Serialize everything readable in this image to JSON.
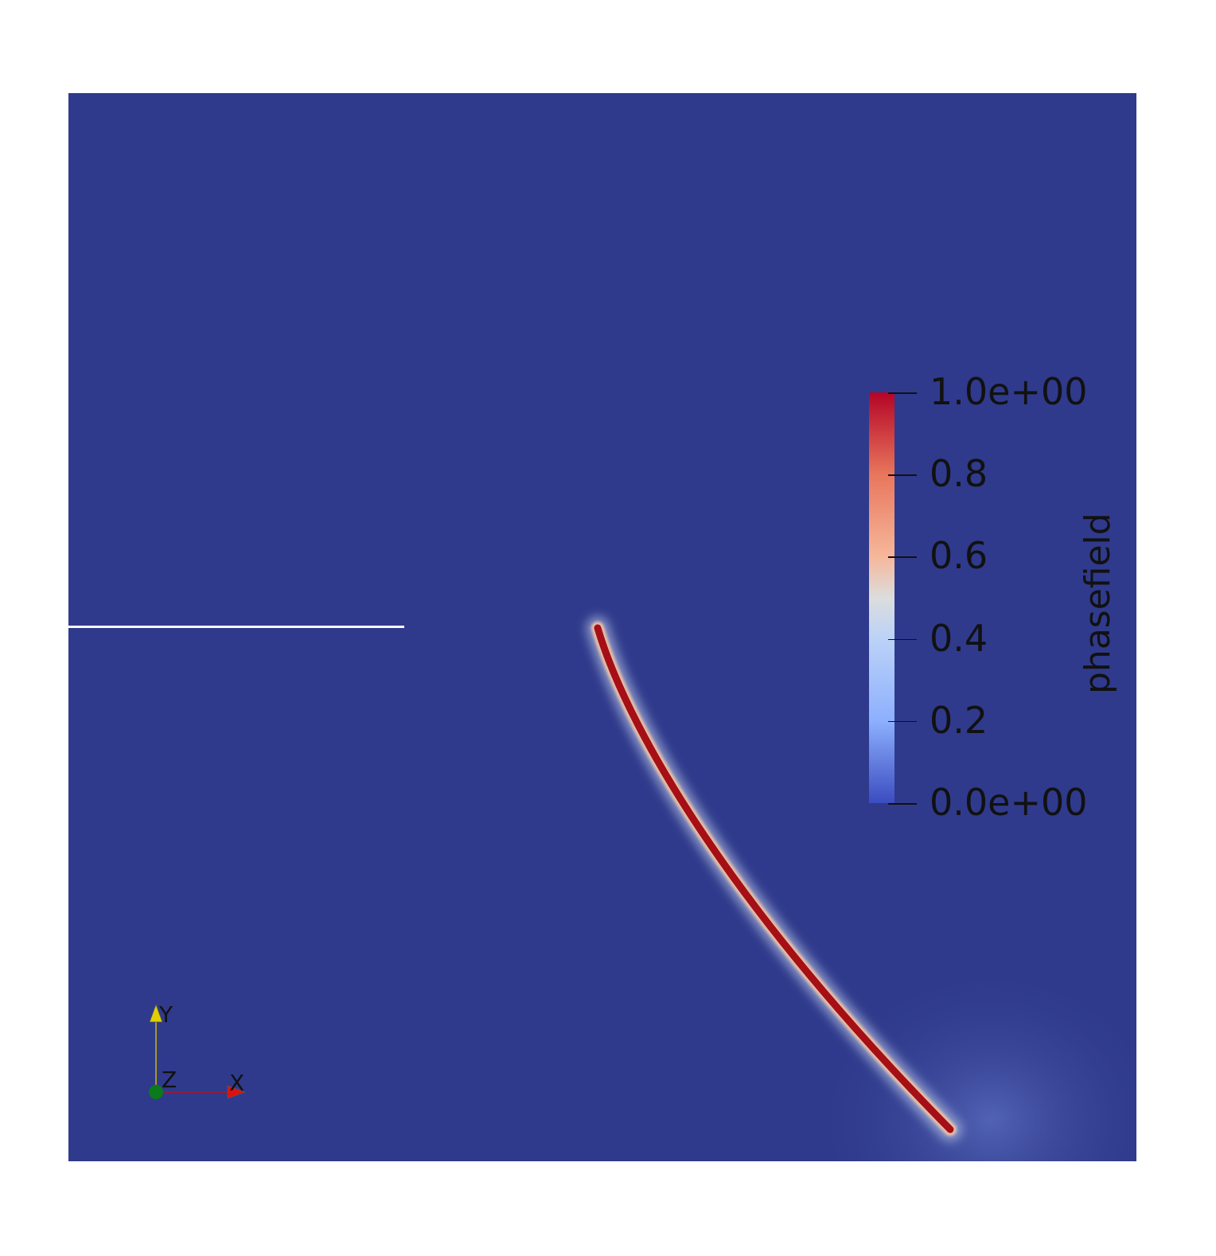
{
  "scene": {
    "background_color": "#2f3a8c",
    "crack_color": "#a50f15",
    "notch_color": "#ffffff"
  },
  "colorbar": {
    "title": "phasefield",
    "ticks": [
      {
        "label": "1.0e+00",
        "value": 1.0
      },
      {
        "label": "0.8",
        "value": 0.8
      },
      {
        "label": "0.6",
        "value": 0.6
      },
      {
        "label": "0.4",
        "value": 0.4
      },
      {
        "label": "0.2",
        "value": 0.2
      },
      {
        "label": "0.0e+00",
        "value": 0.0
      }
    ],
    "colors": {
      "max": "#b40426",
      "mid": "#dcdddd",
      "min": "#3b4cc0"
    }
  },
  "axes_triad": {
    "x_label": "X",
    "y_label": "Y",
    "z_label": "Z",
    "x_color": "#e01010",
    "y_color": "#e0d000",
    "z_color": "#0a7a1a"
  }
}
